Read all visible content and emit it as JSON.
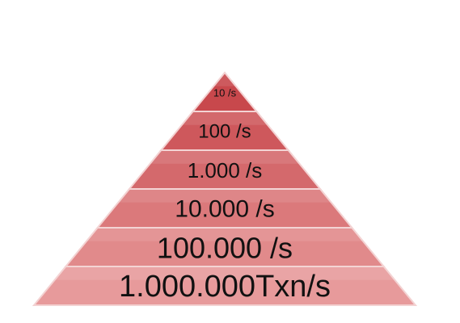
{
  "colors": {
    "tier_top": "#c8484c",
    "tier_bottom": "#e79a9b",
    "separator": "#f3d2d2",
    "label_text": "#111111"
  },
  "pyramid": {
    "tiers": [
      {
        "label": "10 /s"
      },
      {
        "label": "100 /s"
      },
      {
        "label": "1.000 /s"
      },
      {
        "label": "10.000 /s"
      },
      {
        "label": "100.000 /s"
      },
      {
        "label": "1.000.000Txn/s"
      }
    ]
  }
}
